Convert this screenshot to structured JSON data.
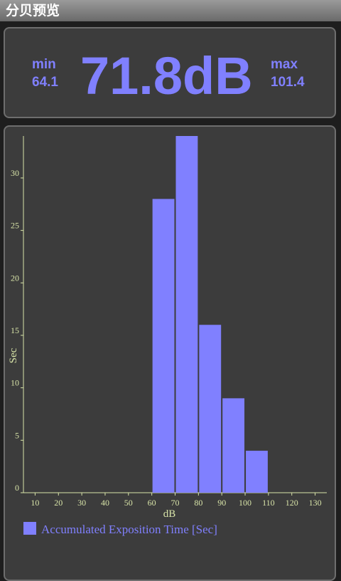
{
  "header": {
    "title": "分贝预览"
  },
  "readout": {
    "min_label": "min",
    "min_value": "64.1",
    "current": "71.8dB",
    "max_label": "max",
    "max_value": "101.4"
  },
  "chart_data": {
    "type": "histogram",
    "bins": [
      60,
      70,
      80,
      90,
      100,
      110
    ],
    "series": [
      {
        "name": "Accumulated Exposition Time [Sec]",
        "color": "#8080ff",
        "values": [
          28,
          34,
          16,
          9,
          4
        ]
      }
    ],
    "x_label": "dB",
    "y_label": "Sec",
    "xlim": [
      5,
      135
    ],
    "xticks": [
      10,
      20,
      30,
      40,
      50,
      60,
      70,
      80,
      90,
      100,
      110,
      120,
      130
    ],
    "ylim": [
      0,
      34
    ],
    "yticks": [
      0,
      5,
      10,
      15,
      20,
      25,
      30
    ],
    "axis_color": "#d8e4a8"
  }
}
